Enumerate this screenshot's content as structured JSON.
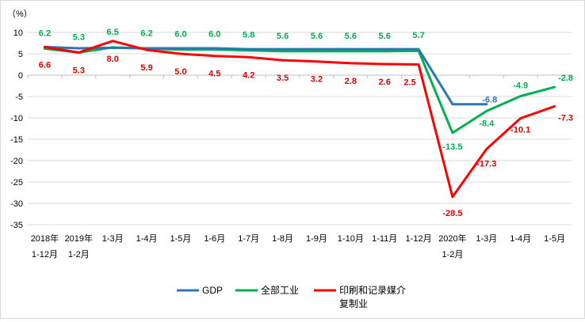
{
  "chart_data": {
    "type": "line",
    "unit_label": "（%）",
    "ylim": [
      -35,
      10
    ],
    "y_ticks": [
      10,
      5,
      0,
      -5,
      -10,
      -15,
      -20,
      -25,
      -30,
      -35
    ],
    "y_tick_labels": [
      "10",
      "5",
      "0",
      "-5",
      "-10",
      "-15",
      "-20",
      "-25",
      "-30",
      "-35"
    ],
    "grid": true,
    "legend_position": "bottom",
    "categories": [
      [
        "2018年",
        "1-12月"
      ],
      [
        "2019年",
        "1-2月"
      ],
      [
        "1-3月"
      ],
      [
        "1-4月"
      ],
      [
        "1-5月"
      ],
      [
        "1-6月"
      ],
      [
        "1-7月"
      ],
      [
        "1-8月"
      ],
      [
        "1-9月"
      ],
      [
        "1-10月"
      ],
      [
        "1-11月"
      ],
      [
        "1-12月"
      ],
      [
        "2020年",
        "1-2月"
      ],
      [
        "1-3月"
      ],
      [
        "1-4月"
      ],
      [
        "1-5月"
      ]
    ],
    "series": [
      {
        "name": "GDP",
        "color": "#2E75B6",
        "values": [
          6.6,
          6.3,
          6.4,
          6.3,
          6.3,
          6.3,
          6.1,
          6.1,
          6.1,
          6.1,
          6.1,
          6.1,
          -6.8,
          -6.8,
          null,
          null
        ],
        "labels": [
          null,
          null,
          null,
          null,
          null,
          null,
          null,
          null,
          null,
          null,
          null,
          null,
          null,
          "-6.8",
          null,
          null
        ]
      },
      {
        "name": "全部工业",
        "color": "#00B050",
        "values": [
          6.2,
          5.3,
          6.5,
          6.2,
          6.0,
          6.0,
          5.8,
          5.6,
          5.6,
          5.6,
          5.6,
          5.7,
          -13.5,
          -8.4,
          -4.9,
          -2.8
        ],
        "labels": [
          "6.2",
          "5.3",
          "6.5",
          "6.2",
          "6.0",
          "6.0",
          "5.8",
          "5.6",
          "5.6",
          "5.6",
          "5.6",
          "5.7",
          "-13.5",
          "-8.4",
          "-4.9",
          "-2.8"
        ]
      },
      {
        "name": "印刷和记录媒介复制业",
        "name_lines": [
          "印刷和记录媒介",
          "复制业"
        ],
        "color": "#FF0000",
        "values": [
          6.6,
          5.3,
          8.0,
          5.9,
          5.0,
          4.5,
          4.2,
          3.5,
          3.2,
          2.8,
          2.6,
          2.5,
          -28.5,
          -17.3,
          -10.1,
          -7.3
        ],
        "labels": [
          "6.6",
          "5.3",
          "8.0",
          "5.9",
          "5.0",
          "4.5",
          "4.2",
          "3.5",
          "3.2",
          "2.8",
          "2.6",
          "2.5",
          "-28.5",
          "-17.3",
          "-10.1",
          "-7.3"
        ]
      }
    ]
  }
}
